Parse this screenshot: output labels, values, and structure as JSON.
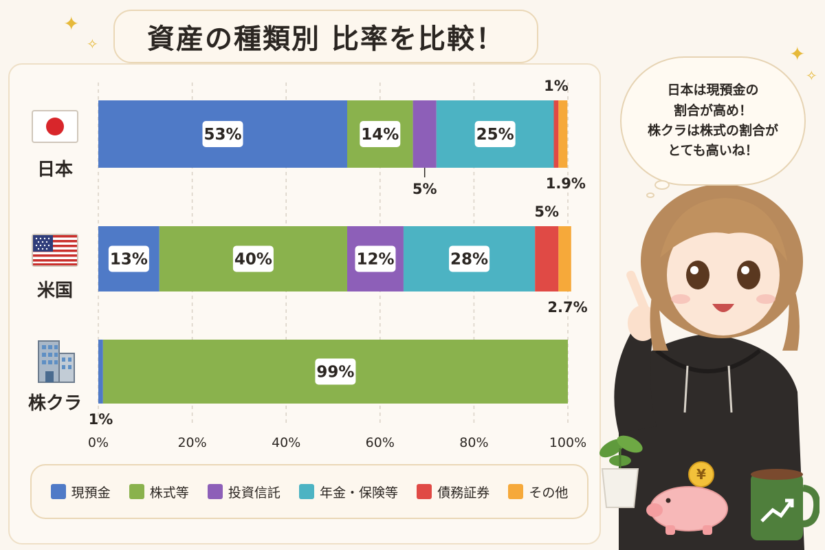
{
  "title": "資産の種類別 比率を比較！",
  "speech_bubble": {
    "lines": [
      "日本は現預金の",
      "割合が高め！",
      "株クラは株式の割合が",
      "とても高いね！"
    ]
  },
  "countries": [
    {
      "label": "日本",
      "icon": "japan-flag-icon"
    },
    {
      "label": "米国",
      "icon": "us-flag-icon"
    },
    {
      "label": "株クラ",
      "icon": "building-icon"
    }
  ],
  "legend": [
    {
      "label": "現預金",
      "color": "#4f7ac7"
    },
    {
      "label": "株式等",
      "color": "#8ab24d"
    },
    {
      "label": "投資信託",
      "color": "#8d5fb8"
    },
    {
      "label": "年金・保険等",
      "color": "#4cb3c3"
    },
    {
      "label": "債務証券",
      "color": "#e04a45"
    },
    {
      "label": "その他",
      "color": "#f6a93a"
    }
  ],
  "chart_data": {
    "type": "bar",
    "orientation": "horizontal",
    "stacked": true,
    "categories": [
      "日本",
      "米国",
      "株クラ"
    ],
    "xlim": [
      0,
      100
    ],
    "x_ticks": [
      "0%",
      "20%",
      "40%",
      "60%",
      "80%",
      "100%"
    ],
    "grid": true,
    "legend_position": "bottom",
    "series": [
      {
        "name": "現預金",
        "color": "#4f7ac7",
        "values": [
          53,
          13,
          1
        ],
        "labels": [
          "53%",
          "13%",
          "1%"
        ]
      },
      {
        "name": "株式等",
        "color": "#8ab24d",
        "values": [
          14,
          40,
          99
        ],
        "labels": [
          "14%",
          "40%",
          "99%"
        ]
      },
      {
        "name": "投資信託",
        "color": "#8d5fb8",
        "values": [
          5,
          12,
          0
        ],
        "labels": [
          "5%",
          "12%",
          ""
        ]
      },
      {
        "name": "年金・保険等",
        "color": "#4cb3c3",
        "values": [
          25,
          28,
          0
        ],
        "labels": [
          "25%",
          "28%",
          ""
        ]
      },
      {
        "name": "債務証券",
        "color": "#e04a45",
        "values": [
          1,
          5,
          0
        ],
        "labels": [
          "1%",
          "5%",
          ""
        ]
      },
      {
        "name": "その他",
        "color": "#f6a93a",
        "values": [
          1.9,
          2.7,
          0
        ],
        "labels": [
          "1.9%",
          "2.7%",
          ""
        ]
      }
    ]
  }
}
